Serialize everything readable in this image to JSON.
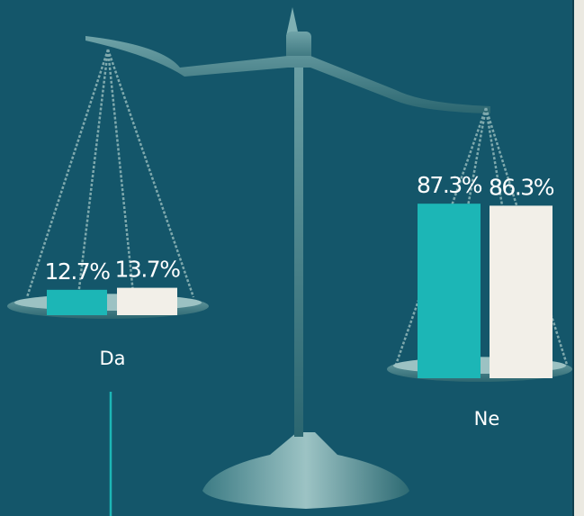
{
  "chart_data": {
    "type": "bar",
    "categories": [
      "Da",
      "Ne"
    ],
    "series": [
      {
        "color": "#1cb6b6",
        "values": [
          12.7,
          87.3
        ],
        "value_labels": [
          "12.7%",
          "87.3%"
        ]
      },
      {
        "color": "#f2efe8",
        "values": [
          13.7,
          86.3
        ],
        "value_labels": [
          "13.7%",
          "86.3%"
        ]
      }
    ]
  }
}
